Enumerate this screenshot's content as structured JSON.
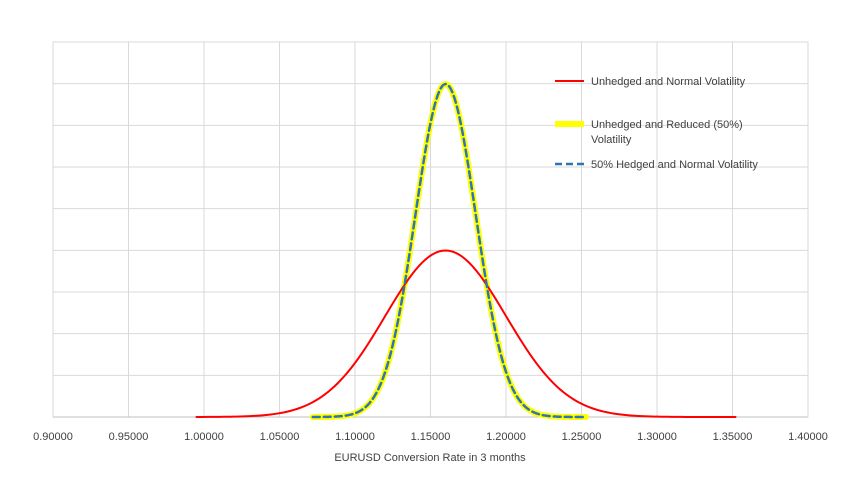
{
  "chart_data": {
    "type": "line",
    "title": "",
    "xlabel": "EURUSD Conversion Rate in 3 months",
    "ylabel": "",
    "xlim": [
      0.9,
      1.4
    ],
    "x_ticks": [
      "0.90000",
      "0.95000",
      "1.00000",
      "1.05000",
      "1.10000",
      "1.15000",
      "1.20000",
      "1.25000",
      "1.30000",
      "1.35000",
      "1.40000"
    ],
    "y_labels_shown": false,
    "grid": true,
    "legend_position": "top-right",
    "series": [
      {
        "name": "Unhedged and Normal Volatility",
        "color": "#ff0000",
        "style": "solid",
        "distribution": "normal",
        "mean": 1.16,
        "sd": 0.04,
        "x_range": [
          0.995,
          1.352
        ],
        "relative_peak": 0.5
      },
      {
        "name": "Unhedged and Reduced (50%) Volatility",
        "color": "#ffff00",
        "style": "solid-thick",
        "distribution": "normal",
        "mean": 1.16,
        "sd": 0.02,
        "x_range": [
          1.072,
          1.253
        ],
        "relative_peak": 1.0
      },
      {
        "name": "50% Hedged and Normal Volatility",
        "color": "#2e75b6",
        "style": "dashed",
        "distribution": "normal",
        "mean": 1.16,
        "sd": 0.02,
        "x_range": [
          1.072,
          1.253
        ],
        "relative_peak": 1.0
      }
    ]
  }
}
